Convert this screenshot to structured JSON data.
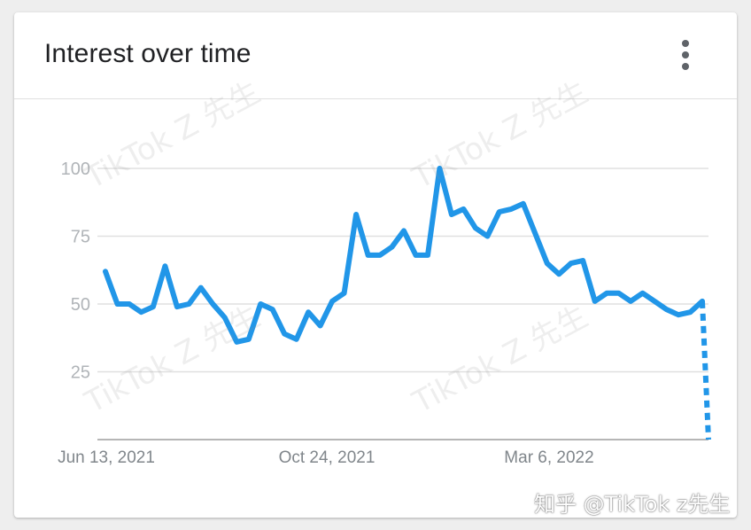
{
  "card": {
    "title": "Interest over time",
    "more_icon": "more-vert-icon"
  },
  "watermark_text": "TikTok Z 先生",
  "credit_text": "知乎 @TikTok z先生",
  "colors": {
    "line": "#2196e8",
    "grid": "#e0e0e0",
    "axis": "#9e9e9e"
  },
  "chart_data": {
    "type": "line",
    "title": "Interest over time",
    "xlabel": "",
    "ylabel": "",
    "ylim": [
      0,
      100
    ],
    "yticks": [
      25,
      50,
      75,
      100
    ],
    "xtick_labels": [
      "Jun 13, 2021",
      "Oct 24, 2021",
      "Mar 6, 2022"
    ],
    "grid": true,
    "series": [
      {
        "values": [
          62,
          50,
          50,
          47,
          49,
          64,
          49,
          50,
          56,
          50,
          45,
          36,
          37,
          50,
          48,
          39,
          37,
          47,
          42,
          51,
          54,
          83,
          68,
          68,
          71,
          77,
          68,
          68,
          100,
          83,
          85,
          78,
          75,
          84,
          85,
          87,
          76,
          65,
          61,
          65,
          66,
          51,
          54,
          54,
          51,
          54,
          51,
          48,
          46,
          47,
          51
        ],
        "partial_values": [
          51,
          0
        ]
      }
    ]
  }
}
